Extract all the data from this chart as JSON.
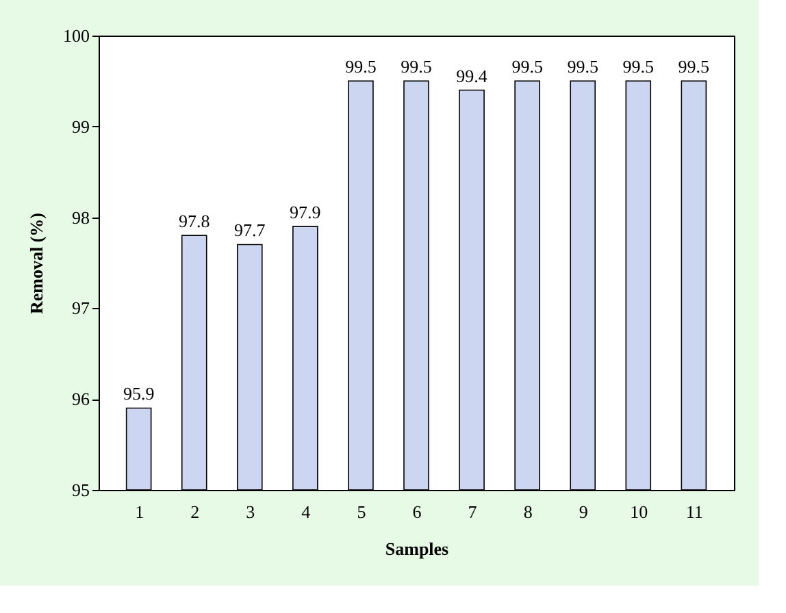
{
  "chart_data": {
    "type": "bar",
    "xlabel": "Samples",
    "ylabel": "Removal (%)",
    "categories": [
      "1",
      "2",
      "3",
      "4",
      "5",
      "6",
      "7",
      "8",
      "9",
      "10",
      "11"
    ],
    "values": [
      95.9,
      97.8,
      97.7,
      97.9,
      99.5,
      99.5,
      99.4,
      99.5,
      99.5,
      99.5,
      99.5
    ],
    "color": "#cdd6f0",
    "ylim": [
      95,
      100
    ],
    "yticks": [
      95,
      96,
      97,
      98,
      99,
      100
    ],
    "grid": false,
    "data_labels": true
  }
}
